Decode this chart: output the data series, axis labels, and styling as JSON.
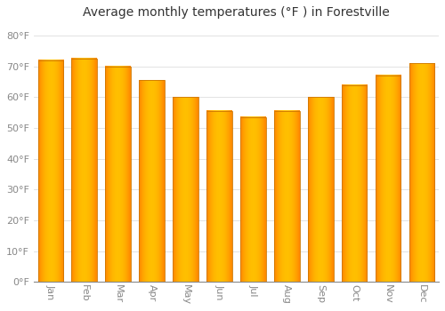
{
  "title": "Average monthly temperatures (°F ) in Forestville",
  "months": [
    "Jan",
    "Feb",
    "Mar",
    "Apr",
    "May",
    "Jun",
    "Jul",
    "Aug",
    "Sep",
    "Oct",
    "Nov",
    "Dec"
  ],
  "values": [
    72,
    72.5,
    70,
    65.5,
    60,
    55.5,
    53.5,
    55.5,
    60,
    64,
    67,
    71
  ],
  "bar_color_center": "#FFB700",
  "bar_color_edge": "#E08000",
  "background_color": "#FFFFFF",
  "plot_bg_color": "#FFFFFF",
  "ylim": [
    0,
    84
  ],
  "yticks": [
    0,
    10,
    20,
    30,
    40,
    50,
    60,
    70,
    80
  ],
  "ytick_labels": [
    "0°F",
    "10°F",
    "20°F",
    "30°F",
    "40°F",
    "50°F",
    "60°F",
    "70°F",
    "80°F"
  ],
  "grid_color": "#dddddd",
  "tick_color": "#888888",
  "title_fontsize": 10,
  "tick_fontsize": 8,
  "xlabel_rotation": 270,
  "bar_width": 0.75
}
